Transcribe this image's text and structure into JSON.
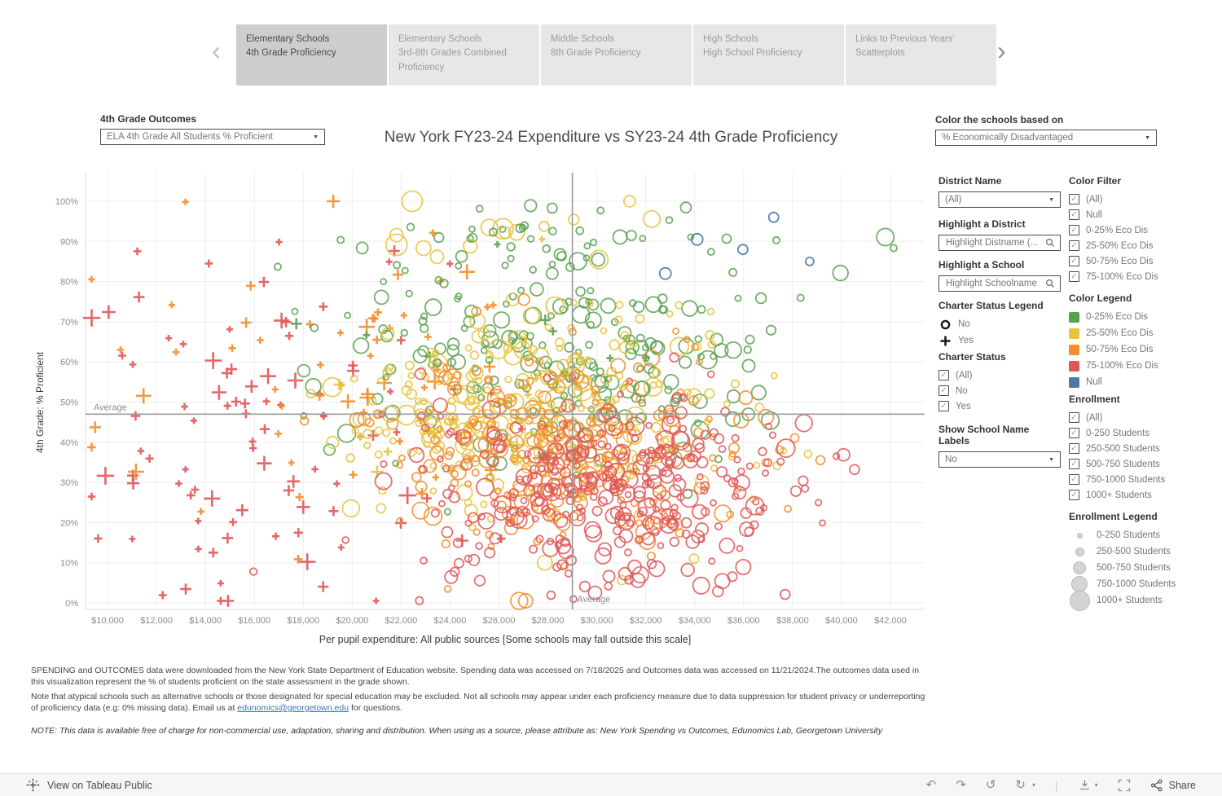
{
  "tabs": {
    "items": [
      {
        "line1": "Elementary Schools",
        "line2": "4th Grade Proficiency",
        "active": true
      },
      {
        "line1": "Elementary Schools",
        "line2": "3rd-8th Grades Combined Proficiency",
        "active": false
      },
      {
        "line1": "Middle Schools",
        "line2": "8th Grade Proficiency",
        "active": false
      },
      {
        "line1": "High Schools",
        "line2": "High School Proficiency",
        "active": false
      },
      {
        "line1": "Links to Previous Years’",
        "line2": "Scatterplots",
        "active": false
      }
    ],
    "prev": "‹",
    "next": "›"
  },
  "outcome_control": {
    "label": "4th Grade Outcomes",
    "value": "ELA 4th Grade All Students % Proficient"
  },
  "color_by_control": {
    "label": "Color the schools based on",
    "value": "% Economically Disadvantaged"
  },
  "chart_data": {
    "type": "scatter",
    "title": "New York FY23-24 Expenditure vs SY23-24 4th Grade Proficiency",
    "xlabel": "Per pupil expenditure: All public sources [Some schools may fall outside this scale]",
    "ylabel": "4th Grade: % Proficient",
    "x_ticks": [
      "$10,000",
      "$12,000",
      "$14,000",
      "$16,000",
      "$18,000",
      "$20,000",
      "$22,000",
      "$24,000",
      "$26,000",
      "$28,000",
      "$30,000",
      "$32,000",
      "$34,000",
      "$36,000",
      "$38,000",
      "$40,000",
      "$42,000"
    ],
    "x_tick_values": [
      10000,
      12000,
      14000,
      16000,
      18000,
      20000,
      22000,
      24000,
      26000,
      28000,
      30000,
      32000,
      34000,
      36000,
      38000,
      40000,
      42000
    ],
    "x_range": [
      9100,
      43400
    ],
    "y_ticks": [
      "0%",
      "10%",
      "20%",
      "30%",
      "40%",
      "50%",
      "60%",
      "70%",
      "80%",
      "90%",
      "100%"
    ],
    "y_tick_values": [
      0,
      10,
      20,
      30,
      40,
      50,
      60,
      70,
      80,
      90,
      100
    ],
    "y_range": [
      0,
      100
    ],
    "grid": true,
    "average_x": 29000,
    "average_y": 47,
    "average_label": "Average",
    "mark_colors": {
      "green": "#59a14f",
      "yellow": "#e8c33f",
      "orange": "#f28e2b",
      "red": "#e15759",
      "blue": "#4e79a7"
    },
    "shape_encoding": {
      "circle": "Charter: No",
      "plus": "Charter: Yes"
    },
    "size_encoding": "Enrollment",
    "seed": 421,
    "clusters": [
      {
        "color": "red",
        "shape": "plus",
        "count": 95,
        "x": [
          16500,
          4200
        ],
        "y": [
          45,
          23
        ],
        "size": [
          4,
          11
        ]
      },
      {
        "color": "orange",
        "shape": "plus",
        "count": 60,
        "x": [
          19000,
          4200
        ],
        "y": [
          55,
          18
        ],
        "size": [
          4,
          10
        ]
      },
      {
        "color": "yellow",
        "shape": "plus",
        "count": 14,
        "x": [
          24000,
          4000
        ],
        "y": [
          50,
          15
        ],
        "size": [
          4,
          9
        ]
      },
      {
        "color": "green",
        "shape": "plus",
        "count": 8,
        "x": [
          26500,
          3500
        ],
        "y": [
          68,
          10
        ],
        "size": [
          4,
          8
        ]
      },
      {
        "color": "green",
        "shape": "circle",
        "count": 240,
        "x": [
          28600,
          4300
        ],
        "y": [
          63,
          15
        ],
        "size": [
          3.5,
          11
        ]
      },
      {
        "color": "yellow",
        "shape": "circle",
        "count": 300,
        "x": [
          27400,
          4100
        ],
        "y": [
          47,
          13
        ],
        "size": [
          3.5,
          12
        ]
      },
      {
        "color": "orange",
        "shape": "circle",
        "count": 230,
        "x": [
          28800,
          4300
        ],
        "y": [
          38,
          13
        ],
        "size": [
          3.5,
          11
        ]
      },
      {
        "color": "red",
        "shape": "circle",
        "count": 330,
        "x": [
          30800,
          4100
        ],
        "y": [
          29,
          11
        ],
        "size": [
          3.5,
          11
        ]
      },
      {
        "color": "red",
        "shape": "circle",
        "count": 28,
        "x": [
          27500,
          4800
        ],
        "y": [
          8,
          4
        ],
        "size": [
          4,
          10
        ]
      },
      {
        "color": "yellow",
        "shape": "circle",
        "count": 14,
        "x": [
          24800,
          3200
        ],
        "y": [
          93,
          4
        ],
        "size": [
          6,
          14
        ]
      },
      {
        "color": "green",
        "shape": "circle",
        "count": 22,
        "x": [
          28500,
          4800
        ],
        "y": [
          90,
          5
        ],
        "size": [
          4,
          9
        ]
      }
    ],
    "null_points": [
      {
        "x": 34100,
        "y": 90.5,
        "r": 7
      },
      {
        "x": 32800,
        "y": 82,
        "r": 7
      },
      {
        "x": 37230,
        "y": 96,
        "r": 6
      },
      {
        "x": 35970,
        "y": 88,
        "r": 6
      },
      {
        "x": 38700,
        "y": 85,
        "r": 5
      }
    ]
  },
  "panel": {
    "district": {
      "label": "District Name",
      "value": "(All)"
    },
    "highlight_district": {
      "label": "Highlight a District",
      "placeholder": "Highlight Distname (..."
    },
    "highlight_school": {
      "label": "Highlight a School",
      "placeholder": "Highlight Schoolname"
    },
    "charter_legend": {
      "label": "Charter Status Legend",
      "items": [
        {
          "shape": "circle",
          "label": "No"
        },
        {
          "shape": "plus",
          "label": "Yes"
        }
      ]
    },
    "charter_status": {
      "label": "Charter Status",
      "items": [
        "(All)",
        "No",
        "Yes"
      ]
    },
    "show_labels": {
      "label": "Show School Name Labels",
      "value": "No"
    },
    "color_filter": {
      "label": "Color Filter",
      "items": [
        "(All)",
        "Null",
        "0-25% Eco Dis",
        "25-50% Eco Dis",
        "50-75% Eco Dis",
        "75-100% Eco Dis"
      ]
    },
    "color_legend": {
      "label": "Color Legend",
      "items": [
        {
          "color": "#59a14f",
          "label": "0-25% Eco Dis"
        },
        {
          "color": "#e8c33f",
          "label": "25-50% Eco Dis"
        },
        {
          "color": "#f28e2b",
          "label": "50-75% Eco Dis"
        },
        {
          "color": "#e15759",
          "label": "75-100% Eco Dis"
        },
        {
          "color": "#4e79a7",
          "label": "Null"
        }
      ]
    },
    "enrollment": {
      "label": "Enrollment",
      "items": [
        "(All)",
        "0-250 Students",
        "250-500 Students",
        "500-750 Students",
        "750-1000 Students",
        "1000+ Students"
      ]
    },
    "enrollment_legend": {
      "label": "Enrollment Legend",
      "items": [
        {
          "size": 7,
          "label": "0-250 Students"
        },
        {
          "size": 11,
          "label": "250-500 Students"
        },
        {
          "size": 16,
          "label": "500-750 Students"
        },
        {
          "size": 20,
          "label": "750-1000 Students"
        },
        {
          "size": 25,
          "label": "1000+ Students"
        }
      ]
    }
  },
  "footer": {
    "p1": "SPENDING and OUTCOMES data were downloaded from the New York State Department of Education website. Spending data was accessed on 7/18/2025 and Outcomes data was accessed on 11/21/2024.The outcomes data used in this visualization represent the % of students proficient on the state assessment in the grade shown.",
    "p2_pre": " Note that atypical schools such as alternative schools or those designated for special education may be excluded. Not all schools may appear under each proficiency measure due to data suppression for student privacy or underreporting of proficiency data (e.g: 0% missing data). Email us at ",
    "p2_link": "edunomics@georgetown.edu",
    "p2_post": " for questions.",
    "note": "NOTE: This data is available free of charge for non-commercial use, adaptation, sharing and distribution. When using as a source, please attribute as: New York Spending vs Outcomes, Edunomics Lab, Georgetown University"
  },
  "toolbar": {
    "view_label": "View on Tableau Public",
    "undo": "↶",
    "redo": "↷",
    "revert": "↺",
    "refresh": "↻",
    "caret": "▾",
    "separator": "|",
    "share_label": "Share"
  }
}
